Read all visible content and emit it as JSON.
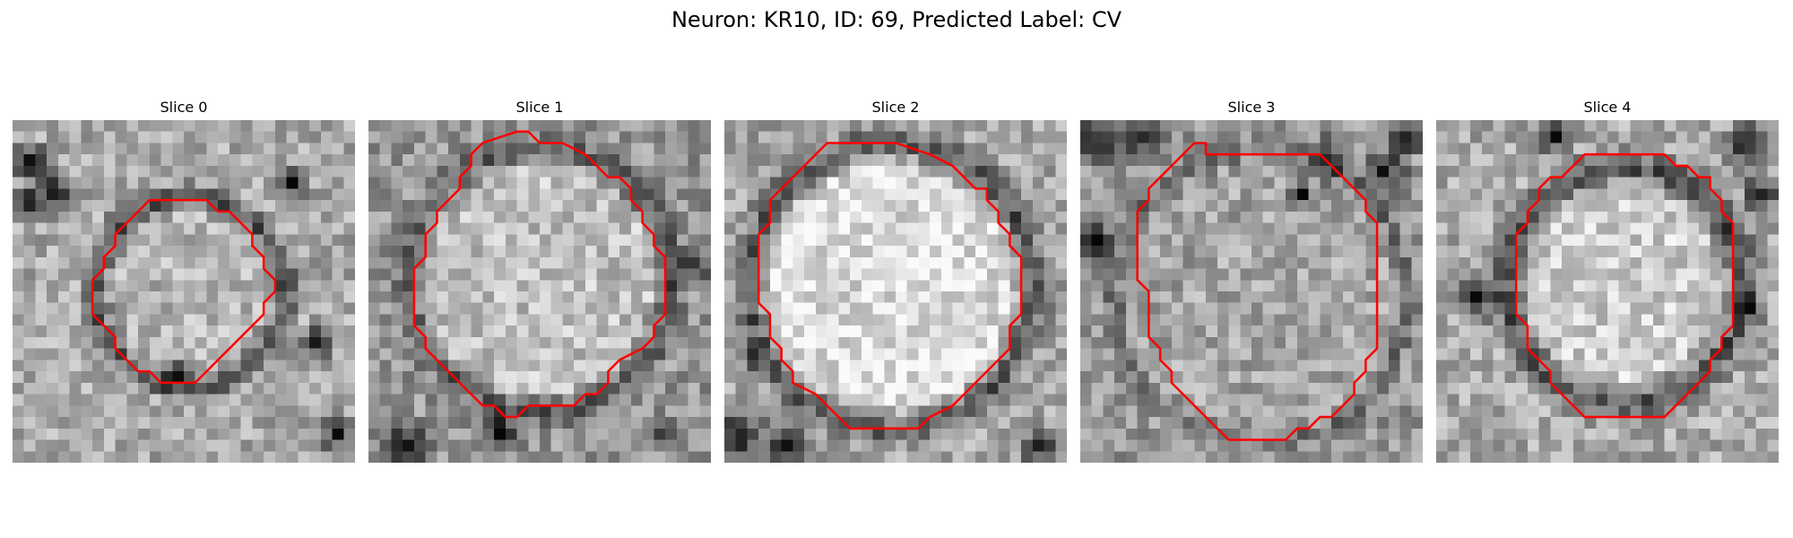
{
  "figure": {
    "title": "Neuron: KR10, ID: 69, Predicted Label: CV"
  },
  "panels": [
    {
      "title": "Slice 0",
      "seed": 11,
      "contour": [
        [
          12,
          7
        ],
        [
          17,
          7
        ],
        [
          18,
          8
        ],
        [
          19,
          8
        ],
        [
          20,
          9
        ],
        [
          21,
          10
        ],
        [
          21,
          11
        ],
        [
          22,
          12
        ],
        [
          22,
          13
        ],
        [
          23,
          14
        ],
        [
          23,
          15
        ],
        [
          22,
          16
        ],
        [
          22,
          17
        ],
        [
          21,
          18
        ],
        [
          20,
          19
        ],
        [
          19,
          20
        ],
        [
          18,
          21
        ],
        [
          17,
          22
        ],
        [
          16,
          23
        ],
        [
          13,
          23
        ],
        [
          12,
          22
        ],
        [
          11,
          22
        ],
        [
          10,
          21
        ],
        [
          9,
          20
        ],
        [
          9,
          19
        ],
        [
          8,
          18
        ],
        [
          7,
          17
        ],
        [
          7,
          14
        ],
        [
          8,
          13
        ],
        [
          8,
          12
        ],
        [
          9,
          11
        ],
        [
          9,
          10
        ],
        [
          10,
          9
        ],
        [
          11,
          8
        ]
      ],
      "ring": {
        "cx": 15.5,
        "cy": 15,
        "r": 8.3,
        "w": 1.6
      },
      "darkBlobs": [
        [
          1,
          3,
          1.4
        ],
        [
          3,
          6,
          1.6
        ],
        [
          1,
          7,
          1.2
        ],
        [
          24,
          5,
          1.2
        ],
        [
          26,
          19,
          1.2
        ],
        [
          28,
          27,
          1.3
        ],
        [
          14,
          22,
          1.3
        ]
      ],
      "inside": 180,
      "outside": 170,
      "ringLevel": 75
    },
    {
      "title": "Slice 1",
      "seed": 23,
      "contour": [
        [
          10,
          2
        ],
        [
          13,
          1
        ],
        [
          14,
          1
        ],
        [
          15,
          2
        ],
        [
          17,
          2
        ],
        [
          19,
          3
        ],
        [
          20,
          4
        ],
        [
          21,
          5
        ],
        [
          22,
          5
        ],
        [
          23,
          6
        ],
        [
          23,
          7
        ],
        [
          24,
          8
        ],
        [
          24,
          9
        ],
        [
          25,
          10
        ],
        [
          25,
          11
        ],
        [
          26,
          12
        ],
        [
          26,
          17
        ],
        [
          25,
          18
        ],
        [
          25,
          19
        ],
        [
          24,
          20
        ],
        [
          22,
          21
        ],
        [
          21,
          22
        ],
        [
          21,
          23
        ],
        [
          20,
          24
        ],
        [
          19,
          24
        ],
        [
          18,
          25
        ],
        [
          17,
          25
        ],
        [
          16,
          25
        ],
        [
          14,
          25
        ],
        [
          13,
          26
        ],
        [
          12,
          26
        ],
        [
          11,
          25
        ],
        [
          10,
          25
        ],
        [
          9,
          24
        ],
        [
          8,
          23
        ],
        [
          7,
          22
        ],
        [
          6,
          21
        ],
        [
          5,
          20
        ],
        [
          5,
          19
        ],
        [
          4,
          18
        ],
        [
          4,
          13
        ],
        [
          5,
          12
        ],
        [
          5,
          10
        ],
        [
          6,
          9
        ],
        [
          6,
          8
        ],
        [
          7,
          7
        ],
        [
          8,
          6
        ],
        [
          8,
          5
        ],
        [
          9,
          4
        ],
        [
          9,
          3
        ]
      ],
      "ring": {
        "cx": 15,
        "cy": 14,
        "r": 11.5,
        "w": 1.8
      },
      "darkBlobs": [
        [
          3,
          28,
          1.8
        ],
        [
          11,
          27,
          1.6
        ],
        [
          25,
          27,
          1.2
        ],
        [
          28,
          12,
          1.3
        ]
      ],
      "inside": 192,
      "outside": 150,
      "ringLevel": 85
    },
    {
      "title": "Slice 2",
      "seed": 37,
      "contour": [
        [
          10,
          2
        ],
        [
          14,
          2
        ],
        [
          15,
          2
        ],
        [
          18,
          3
        ],
        [
          20,
          4
        ],
        [
          21,
          5
        ],
        [
          22,
          6
        ],
        [
          23,
          6
        ],
        [
          23,
          7
        ],
        [
          24,
          8
        ],
        [
          24,
          9
        ],
        [
          25,
          10
        ],
        [
          25,
          11
        ],
        [
          26,
          12
        ],
        [
          26,
          17
        ],
        [
          25,
          18
        ],
        [
          25,
          20
        ],
        [
          24,
          21
        ],
        [
          23,
          22
        ],
        [
          22,
          23
        ],
        [
          21,
          24
        ],
        [
          20,
          25
        ],
        [
          18,
          26
        ],
        [
          17,
          27
        ],
        [
          14,
          27
        ],
        [
          11,
          27
        ],
        [
          10,
          26
        ],
        [
          9,
          25
        ],
        [
          8,
          24
        ],
        [
          6,
          23
        ],
        [
          6,
          22
        ],
        [
          5,
          21
        ],
        [
          5,
          20
        ],
        [
          4,
          19
        ],
        [
          4,
          17
        ],
        [
          3,
          16
        ],
        [
          3,
          10
        ],
        [
          4,
          9
        ],
        [
          4,
          7
        ],
        [
          5,
          6
        ],
        [
          6,
          5
        ],
        [
          7,
          4
        ],
        [
          8,
          3
        ],
        [
          9,
          2
        ]
      ],
      "ring": {
        "cx": 14.6,
        "cy": 14.6,
        "r": 12.4,
        "w": 2.0
      },
      "darkBlobs": [
        [
          1,
          27,
          1.7
        ],
        [
          5,
          28,
          1.6
        ],
        [
          27,
          28,
          1.3
        ],
        [
          2,
          20,
          1.0
        ]
      ],
      "inside": 220,
      "outside": 165,
      "ringLevel": 80
    },
    {
      "title": "Slice 3",
      "seed": 51,
      "contour": [
        [
          10,
          2
        ],
        [
          11,
          2
        ],
        [
          11,
          3
        ],
        [
          14,
          3
        ],
        [
          15,
          3
        ],
        [
          17,
          3
        ],
        [
          19,
          3
        ],
        [
          21,
          3
        ],
        [
          22,
          4
        ],
        [
          23,
          5
        ],
        [
          24,
          6
        ],
        [
          25,
          7
        ],
        [
          25,
          8
        ],
        [
          26,
          9
        ],
        [
          26,
          20
        ],
        [
          25,
          21
        ],
        [
          25,
          22
        ],
        [
          24,
          23
        ],
        [
          24,
          24
        ],
        [
          23,
          25
        ],
        [
          22,
          26
        ],
        [
          21,
          26
        ],
        [
          20,
          27
        ],
        [
          19,
          27
        ],
        [
          18,
          28
        ],
        [
          13,
          28
        ],
        [
          12,
          27
        ],
        [
          11,
          26
        ],
        [
          10,
          25
        ],
        [
          9,
          24
        ],
        [
          8,
          23
        ],
        [
          8,
          22
        ],
        [
          7,
          21
        ],
        [
          7,
          20
        ],
        [
          6,
          19
        ],
        [
          6,
          15
        ],
        [
          5,
          14
        ],
        [
          5,
          8
        ],
        [
          6,
          7
        ],
        [
          6,
          6
        ],
        [
          7,
          5
        ],
        [
          8,
          4
        ],
        [
          9,
          3
        ]
      ],
      "ring": {
        "cx": 15.8,
        "cy": 15.5,
        "r": 12.8,
        "w": 1.4
      },
      "darkBlobs": [
        [
          1,
          1,
          1.8
        ],
        [
          5,
          1,
          1.4
        ],
        [
          1,
          10,
          1.3
        ],
        [
          21,
          3,
          1.5
        ],
        [
          26,
          4,
          1.6
        ],
        [
          28,
          1,
          1.3
        ],
        [
          19,
          6,
          1.0
        ]
      ],
      "inside": 165,
      "outside": 150,
      "ringLevel": 110
    },
    {
      "title": "Slice 4",
      "seed": 67,
      "contour": [
        [
          12,
          4
        ],
        [
          13,
          3
        ],
        [
          14,
          3
        ],
        [
          16,
          3
        ],
        [
          18,
          3
        ],
        [
          20,
          3
        ],
        [
          21,
          4
        ],
        [
          22,
          4
        ],
        [
          23,
          5
        ],
        [
          24,
          5
        ],
        [
          24,
          6
        ],
        [
          25,
          7
        ],
        [
          25,
          8
        ],
        [
          26,
          9
        ],
        [
          26,
          18
        ],
        [
          25,
          19
        ],
        [
          25,
          20
        ],
        [
          24,
          21
        ],
        [
          24,
          22
        ],
        [
          23,
          23
        ],
        [
          22,
          24
        ],
        [
          21,
          25
        ],
        [
          20,
          26
        ],
        [
          13,
          26
        ],
        [
          12,
          25
        ],
        [
          11,
          24
        ],
        [
          10,
          23
        ],
        [
          10,
          22
        ],
        [
          9,
          21
        ],
        [
          8,
          20
        ],
        [
          8,
          18
        ],
        [
          7,
          17
        ],
        [
          7,
          10
        ],
        [
          8,
          9
        ],
        [
          8,
          8
        ],
        [
          9,
          7
        ],
        [
          9,
          6
        ],
        [
          10,
          5
        ],
        [
          11,
          5
        ]
      ],
      "ring": {
        "cx": 16.5,
        "cy": 14.5,
        "r": 10.3,
        "w": 2.2
      },
      "darkBlobs": [
        [
          3,
          15,
          1.6
        ],
        [
          10,
          1,
          1.3
        ],
        [
          27,
          2,
          1.8
        ],
        [
          28,
          6,
          1.4
        ],
        [
          27,
          16,
          1.1
        ]
      ],
      "inside": 205,
      "outside": 170,
      "ringLevel": 75
    }
  ],
  "colors": {
    "contour": "#ff0000",
    "background": "#ffffff"
  }
}
